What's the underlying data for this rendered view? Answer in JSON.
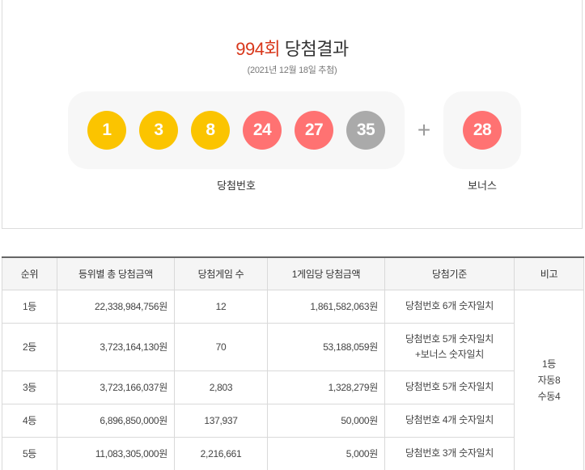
{
  "header": {
    "round": "994회",
    "title": "당첨결과",
    "draw_date": "(2021년 12월 18일 추첨)"
  },
  "winning_numbers": {
    "caption": "당첨번호",
    "balls": [
      {
        "number": "1",
        "color": "#fbc400"
      },
      {
        "number": "3",
        "color": "#fbc400"
      },
      {
        "number": "8",
        "color": "#fbc400"
      },
      {
        "number": "24",
        "color": "#ff7272"
      },
      {
        "number": "27",
        "color": "#ff7272"
      },
      {
        "number": "35",
        "color": "#aaaaaa"
      }
    ]
  },
  "bonus": {
    "caption": "보너스",
    "plus_symbol": "+",
    "number": "28",
    "color": "#ff7272"
  },
  "table": {
    "headers": [
      "순위",
      "등위별 총 당첨금액",
      "당첨게임 수",
      "1게임당 당첨금액",
      "당첨기준",
      "비고"
    ],
    "rows": [
      {
        "rank": "1등",
        "total": "22,338,984,756원",
        "games": "12",
        "per_game": "1,861,582,063원",
        "criteria_a": "당첨번호 6개 숫자일치",
        "criteria_b": ""
      },
      {
        "rank": "2등",
        "total": "3,723,164,130원",
        "games": "70",
        "per_game": "53,188,059원",
        "criteria_a": "당첨번호 5개 숫자일치",
        "criteria_b": "+보너스 숫자일치"
      },
      {
        "rank": "3등",
        "total": "3,723,166,037원",
        "games": "2,803",
        "per_game": "1,328,279원",
        "criteria_a": "당첨번호 5개 숫자일치",
        "criteria_b": ""
      },
      {
        "rank": "4등",
        "total": "6,896,850,000원",
        "games": "137,937",
        "per_game": "50,000원",
        "criteria_a": "당첨번호 4개 숫자일치",
        "criteria_b": ""
      },
      {
        "rank": "5등",
        "total": "11,083,305,000원",
        "games": "2,216,661",
        "per_game": "5,000원",
        "criteria_a": "당첨번호 3개 숫자일치",
        "criteria_b": ""
      }
    ],
    "note": {
      "line1": "1등",
      "line2": "자동8",
      "line3": "수동4"
    }
  },
  "colors": {
    "accent": "#d8371b",
    "yellow_ball": "#fbc400",
    "red_ball": "#ff7272",
    "gray_ball": "#aaaaaa"
  }
}
